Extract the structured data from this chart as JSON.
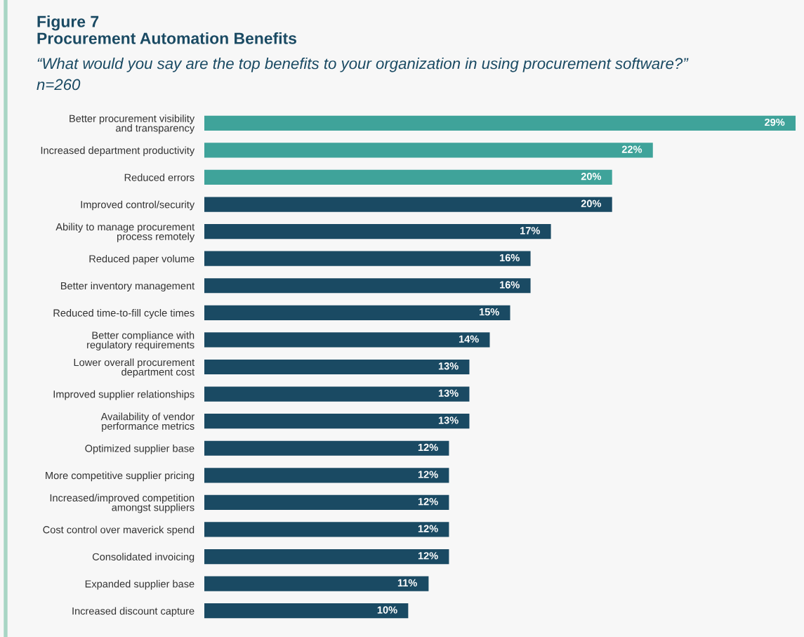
{
  "chart_data": {
    "type": "bar",
    "orientation": "horizontal",
    "title": "Figure 7\nProcurement Automation Benefits",
    "subtitle": "“What would you say are the top benefits to your organization in using procurement software?”",
    "annotations": [
      "n=260"
    ],
    "categories": [
      "Better procurement visibility\nand transparency",
      "Increased department productivity",
      "Reduced errors",
      "Improved control/security",
      "Ability to manage procurement\nprocess remotely",
      "Reduced paper volume",
      "Better inventory management",
      "Reduced time-to-fill cycle times",
      "Better compliance with\nregulatory requirements",
      "Lower overall procurement\ndepartment cost",
      "Improved supplier relationships",
      "Availability of vendor\nperformance metrics",
      "Optimized supplier base",
      "More competitive supplier pricing",
      "Increased/improved competition\namongst suppliers",
      "Cost control over maverick spend",
      "Consolidated invoicing",
      "Expanded supplier base",
      "Increased discount capture"
    ],
    "values": [
      29,
      22,
      20,
      20,
      17,
      16,
      16,
      15,
      14,
      13,
      13,
      13,
      12,
      12,
      12,
      12,
      12,
      11,
      10
    ],
    "value_labels": [
      "29%",
      "22%",
      "20%",
      "20%",
      "17%",
      "16%",
      "16%",
      "15%",
      "14%",
      "13%",
      "13%",
      "13%",
      "12%",
      "12%",
      "12%",
      "12%",
      "12%",
      "11%",
      "10%"
    ],
    "colors": [
      "#3fa39a",
      "#3fa39a",
      "#3fa39a",
      "#1a4a63",
      "#1a4a63",
      "#1a4a63",
      "#1a4a63",
      "#1a4a63",
      "#1a4a63",
      "#1a4a63",
      "#1a4a63",
      "#1a4a63",
      "#1a4a63",
      "#1a4a63",
      "#1a4a63",
      "#1a4a63",
      "#1a4a63",
      "#1a4a63",
      "#1a4a63"
    ],
    "grid": false,
    "legend": false
  }
}
